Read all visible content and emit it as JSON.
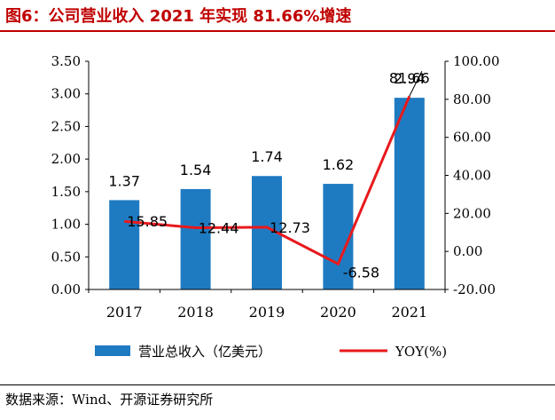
{
  "title": "图6：公司营业收入 2021 年实现 81.66%增速",
  "source": "数据来源：Wind、开源证券研究所",
  "colors": {
    "bar": "#1F7BC1",
    "line": "#E8191C",
    "title": "#C00000"
  },
  "chart_data": {
    "type": "bar+line",
    "categories": [
      "2017",
      "2018",
      "2019",
      "2020",
      "2021"
    ],
    "series": [
      {
        "name": "营业总收入（亿美元）",
        "type": "bar",
        "axis": "left",
        "values": [
          1.37,
          1.54,
          1.74,
          1.62,
          2.94
        ],
        "labels": [
          "1.37",
          "1.54",
          "1.74",
          "1.62",
          "2.94"
        ]
      },
      {
        "name": "YOY(%)",
        "type": "line",
        "axis": "right",
        "values": [
          15.85,
          12.44,
          12.73,
          -6.58,
          81.66
        ],
        "labels": [
          "15.85",
          "12.44",
          "12.73",
          "-6.58",
          "81.66"
        ]
      }
    ],
    "ylim_left": [
      0,
      3.5
    ],
    "yticks_left": [
      "0.00",
      "0.50",
      "1.00",
      "1.50",
      "2.00",
      "2.50",
      "3.00",
      "3.50"
    ],
    "ylim_right": [
      -20,
      100
    ],
    "yticks_right": [
      "-20.00",
      "0.00",
      "20.00",
      "40.00",
      "60.00",
      "80.00",
      "100.00"
    ],
    "legend": [
      "营业总收入（亿美元）",
      "YOY(%)"
    ]
  }
}
